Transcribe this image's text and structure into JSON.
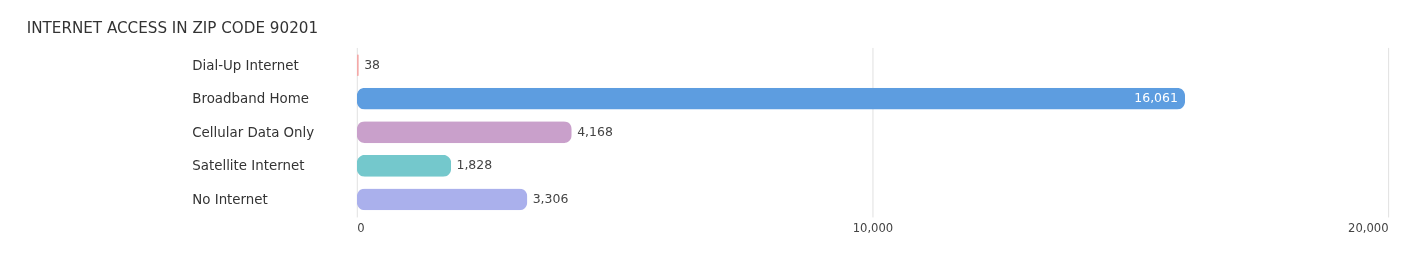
{
  "chart_data": {
    "type": "bar",
    "orientation": "horizontal",
    "title": "INTERNET ACCESS IN ZIP CODE 90201",
    "categories": [
      "Dial-Up Internet",
      "Broadband Home",
      "Cellular Data Only",
      "Satellite Internet",
      "No Internet"
    ],
    "values": [
      38,
      16061,
      4168,
      1828,
      3306
    ],
    "value_labels": [
      "38",
      "16,061",
      "4,168",
      "1,828",
      "3,306"
    ],
    "colors": [
      "#f4a9a8",
      "#5d9de0",
      "#c9a0cb",
      "#74c8cc",
      "#aab0ec"
    ],
    "xlim": [
      0,
      20000
    ],
    "xticks": [
      0,
      {
        "value": 10000,
        "label": "10,000"
      },
      {
        "value": 20000,
        "label": "20,000"
      }
    ],
    "grid": "x"
  }
}
